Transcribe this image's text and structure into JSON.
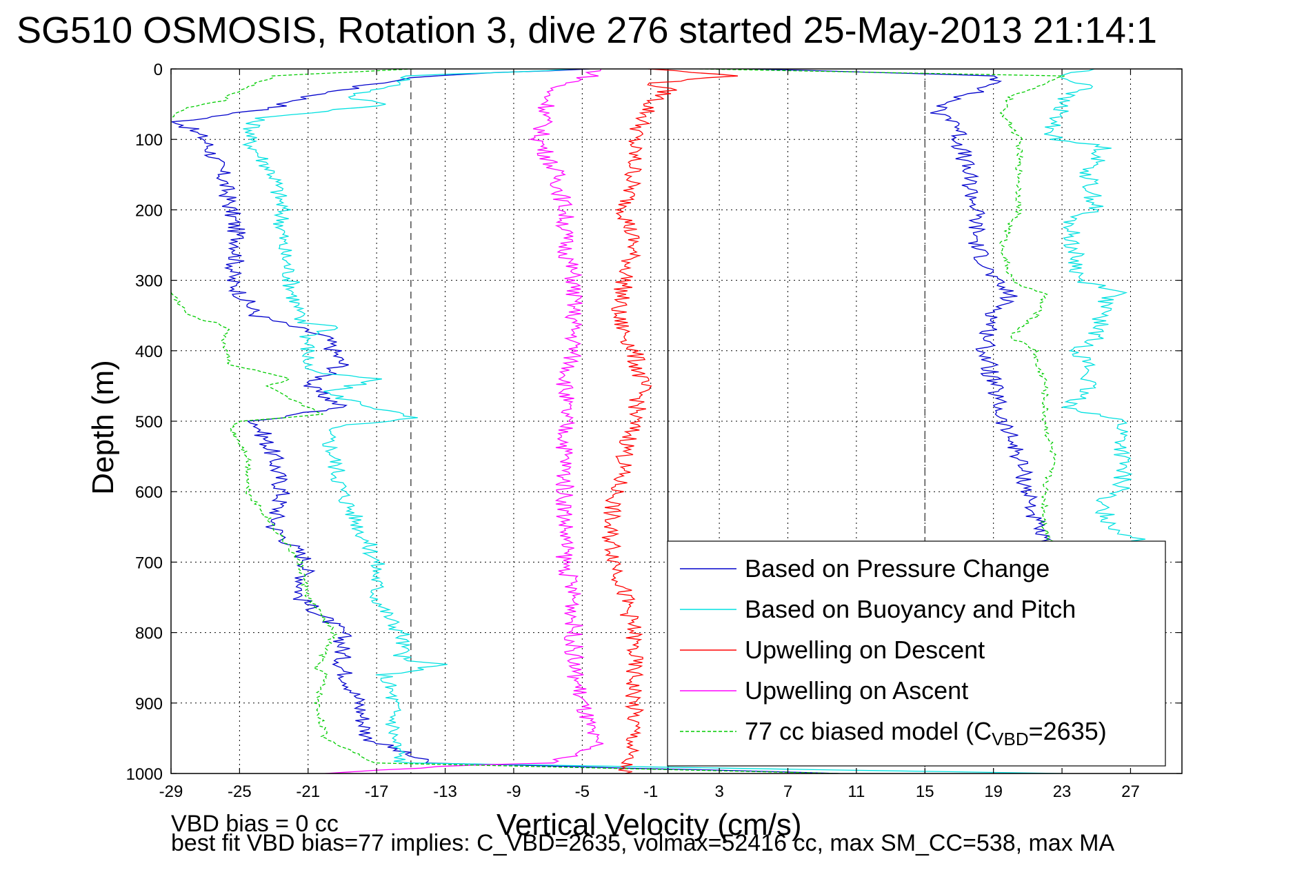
{
  "title": "SG510 OSMOSIS, Rotation 3, dive 276 started 25-May-2013 21:14:1",
  "footer": {
    "line1": "VBD bias = 0 cc",
    "line2": "best fit VBD bias=77 implies: C_VBD=2635, volmax=52416 cc, max SM_CC=538, max MA"
  },
  "chart_data": {
    "type": "line",
    "title": "SG510 OSMOSIS, Rotation 3, dive 276 started 25-May-2013 21:14:1",
    "xlabel": "Vertical Velocity (cm/s)",
    "ylabel": "Depth (m)",
    "xlim": [
      -29,
      30
    ],
    "ylim": [
      0,
      1000
    ],
    "y_reversed": true,
    "xticks": [
      -29,
      -25,
      -21,
      -17,
      -13,
      -9,
      -5,
      -1,
      3,
      7,
      11,
      15,
      19,
      23,
      27
    ],
    "yticks": [
      0,
      100,
      200,
      300,
      400,
      500,
      600,
      700,
      800,
      900,
      1000
    ],
    "grid": true,
    "legend_position": "bottom-right",
    "reference_lines": [
      {
        "x": -15,
        "style": "dashed",
        "color": "#555555"
      },
      {
        "x": 0,
        "style": "solid",
        "color": "#000000"
      },
      {
        "x": 15,
        "style": "dashed",
        "color": "#555555"
      }
    ],
    "series": [
      {
        "name": "Based on Pressure Change",
        "color": "#0000cc",
        "style": "solid",
        "branches": [
          {
            "depth": [
              0,
              10,
              25,
              40,
              55,
              75,
              100,
              150,
              200,
              250,
              300,
              350,
              380,
              420,
              450,
              480,
              500,
              550,
              600,
              650,
              700,
              750,
              800,
              850,
              900,
              950,
              985,
              1000
            ],
            "x": [
              -5,
              -14,
              -18,
              -21,
              -23,
              -28.5,
              -27,
              -26,
              -25.5,
              -25,
              -25.5,
              -24,
              -20,
              -19,
              -21,
              -19,
              -24,
              -23,
              -22.5,
              -23,
              -21,
              -21.5,
              -19,
              -19,
              -18,
              -17.5,
              -14,
              10
            ]
          },
          {
            "depth": [
              0,
              10,
              20,
              40,
              60,
              75,
              100,
              150,
              200,
              250,
              300,
              320,
              350,
              400,
              450,
              500,
              550,
              600,
              650,
              680
            ],
            "x": [
              5,
              19,
              19.5,
              17,
              15.5,
              17,
              17,
              17.5,
              18,
              18,
              19,
              20,
              19,
              18.5,
              19,
              19.5,
              20.5,
              21,
              21.5,
              22
            ]
          }
        ]
      },
      {
        "name": "Based on Buoyancy and Pitch",
        "color": "#00e0e0",
        "style": "solid",
        "branches": [
          {
            "depth": [
              0,
              10,
              25,
              40,
              50,
              70,
              100,
              150,
              200,
              250,
              300,
              360,
              365,
              380,
              430,
              440,
              460,
              495,
              510,
              550,
              600,
              650,
              700,
              750,
              790,
              800,
              840,
              845,
              860,
              900,
              950,
              985,
              1000
            ],
            "x": [
              -5,
              -15,
              -16,
              -19,
              -16,
              -24,
              -24.5,
              -23,
              -22.5,
              -22.5,
              -22,
              -21.5,
              -19,
              -21,
              -21,
              -17,
              -20,
              -15,
              -20,
              -19.5,
              -19,
              -18,
              -17,
              -17,
              -16,
              -15.5,
              -15.5,
              -13,
              -16.5,
              -16,
              -16,
              -15.5,
              23
            ]
          },
          {
            "depth": [
              0,
              10,
              25,
              40,
              55,
              75,
              100,
              110,
              150,
              200,
              210,
              230,
              300,
              315,
              330,
              380,
              400,
              420,
              450,
              480,
              500,
              550,
              600,
              610,
              650,
              670,
              680
            ],
            "x": [
              25,
              22.5,
              25,
              23,
              23,
              22.5,
              22.5,
              25.5,
              24.5,
              25,
              23.5,
              23.5,
              24,
              26.5,
              25.5,
              25,
              24,
              24.5,
              24.5,
              23.5,
              26.5,
              26.5,
              26.5,
              25,
              26,
              27.5,
              28
            ]
          }
        ]
      },
      {
        "name": "Upwelling on Descent",
        "color": "#ff0000",
        "style": "solid",
        "branches": [
          {
            "depth": [
              0,
              10,
              20,
              30,
              50,
              100,
              150,
              200,
              250,
              300,
              350,
              400,
              450,
              500,
              550,
              600,
              650,
              700,
              750,
              800,
              850,
              900,
              950,
              985,
              1000
            ],
            "x": [
              -1,
              4,
              -1,
              0,
              -1,
              -2,
              -2,
              -2.5,
              -2,
              -2.5,
              -3,
              -2,
              -1.5,
              -2,
              -2.5,
              -3,
              -3.5,
              -3,
              -2.5,
              -2,
              -2,
              -2,
              -2,
              -2.5,
              -2.5
            ]
          }
        ]
      },
      {
        "name": "Upwelling on Ascent",
        "color": "#ff00ff",
        "style": "solid",
        "branches": [
          {
            "depth": [
              0,
              10,
              30,
              50,
              100,
              150,
              200,
              250,
              300,
              350,
              400,
              450,
              500,
              550,
              600,
              650,
              700,
              750,
              800,
              850,
              900,
              950,
              960,
              985,
              990,
              1000
            ],
            "x": [
              -4,
              -4.5,
              -7,
              -7,
              -7.5,
              -6.5,
              -6,
              -6,
              -5.5,
              -5.5,
              -5.5,
              -6,
              -6,
              -6,
              -6,
              -6,
              -6,
              -5.5,
              -5.5,
              -5.5,
              -5,
              -4.5,
              -4,
              -7,
              -13,
              -20
            ]
          }
        ]
      },
      {
        "name": "77 cc biased model (C_VBD=2635)",
        "color": "#00cc00",
        "style": "dashed",
        "branches": [
          {
            "depth": [
              0,
              10,
              30,
              45,
              55,
              75,
              100,
              150,
              200,
              250,
              300,
              350,
              360,
              370,
              380,
              420,
              440,
              450,
              470,
              490,
              500,
              510,
              550,
              600,
              650,
              700,
              750,
              800,
              850,
              860,
              900,
              950,
              985,
              1000
            ],
            "x": [
              -15,
              -23,
              -25,
              -26,
              -28,
              -29.5,
              -29.5,
              -29.5,
              -29.5,
              -29.5,
              -29.5,
              -28,
              -26.5,
              -25.5,
              -26,
              -25.5,
              -22,
              -23.5,
              -22,
              -20,
              -25,
              -25.5,
              -24.5,
              -24.5,
              -23,
              -21.5,
              -21,
              -19.5,
              -20.5,
              -20,
              -20.5,
              -20,
              -17,
              10
            ]
          },
          {
            "depth": [
              0,
              10,
              40,
              60,
              80,
              100,
              150,
              200,
              220,
              250,
              300,
              320,
              350,
              380,
              400,
              420,
              440,
              500,
              550,
              600,
              650,
              680
            ],
            "x": [
              2,
              23,
              20,
              19.5,
              20,
              20.5,
              20.5,
              20.5,
              20,
              19.5,
              20,
              22,
              21.5,
              20,
              21.5,
              21.5,
              22,
              22,
              22.5,
              22,
              22,
              22.5
            ]
          }
        ]
      }
    ]
  }
}
